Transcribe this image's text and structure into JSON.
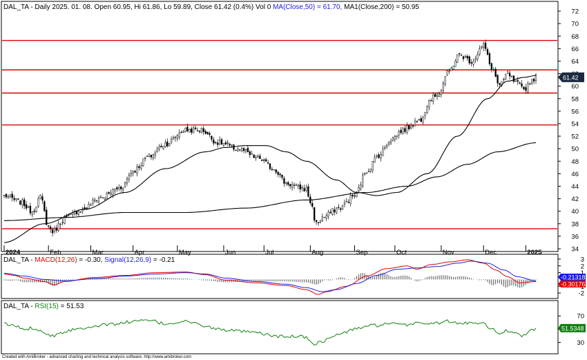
{
  "chart_data": [
    {
      "type": "candlestick",
      "header": {
        "ticker": "DAL_TA",
        "info": " - Daily 2025. 01. 08. Open 60.95, Hi 61.86, Lo 59.89, Close 61.42 (0.4%) Vol 0 ",
        "ma50_label": "MA(Close,50) = 61.70,",
        "ma200_label": " MA1(Close,200) = 50.95"
      },
      "ylim": [
        34,
        73
      ],
      "yticks": [
        34,
        36,
        38,
        40,
        42,
        44,
        46,
        48,
        50,
        52,
        54,
        56,
        58,
        60,
        62,
        64,
        66,
        68,
        70,
        72
      ],
      "x_months": [
        {
          "label": "2024",
          "bold": true,
          "index": 0
        },
        {
          "label": "Feb",
          "bold": false,
          "index": 22
        },
        {
          "label": "Mar",
          "bold": false,
          "index": 43
        },
        {
          "label": "Apr",
          "bold": false,
          "index": 64
        },
        {
          "label": "May",
          "bold": false,
          "index": 86
        },
        {
          "label": "Jun",
          "bold": false,
          "index": 109
        },
        {
          "label": "Jul",
          "bold": false,
          "index": 129
        },
        {
          "label": "Aug",
          "bold": false,
          "index": 152
        },
        {
          "label": "Sep",
          "bold": false,
          "index": 174
        },
        {
          "label": "Oct",
          "bold": false,
          "index": 194
        },
        {
          "label": "Nov",
          "bold": false,
          "index": 217
        },
        {
          "label": "Dec",
          "bold": false,
          "index": 238
        },
        {
          "label": "2025",
          "bold": true,
          "index": 259
        }
      ],
      "n_days": 265,
      "close_anchors": [
        [
          0,
          42.5
        ],
        [
          8,
          41.5
        ],
        [
          14,
          40.0
        ],
        [
          18,
          42.2
        ],
        [
          22,
          37.5
        ],
        [
          24,
          36.8
        ],
        [
          30,
          38.8
        ],
        [
          38,
          40.2
        ],
        [
          48,
          42.2
        ],
        [
          58,
          43.8
        ],
        [
          64,
          46.5
        ],
        [
          72,
          48.8
        ],
        [
          80,
          50.8
        ],
        [
          90,
          53.0
        ],
        [
          98,
          53.0
        ],
        [
          106,
          51.0
        ],
        [
          116,
          50.0
        ],
        [
          126,
          48.5
        ],
        [
          134,
          46.8
        ],
        [
          140,
          44.5
        ],
        [
          146,
          43.8
        ],
        [
          150,
          43.5
        ],
        [
          152,
          41.5
        ],
        [
          155,
          38.0
        ],
        [
          158,
          39.0
        ],
        [
          166,
          40.5
        ],
        [
          174,
          42.5
        ],
        [
          180,
          46.5
        ],
        [
          186,
          49.0
        ],
        [
          192,
          51.5
        ],
        [
          198,
          53.0
        ],
        [
          206,
          54.5
        ],
        [
          212,
          58.0
        ],
        [
          216,
          59.0
        ],
        [
          220,
          62.0
        ],
        [
          226,
          65.0
        ],
        [
          232,
          64.0
        ],
        [
          238,
          66.5
        ],
        [
          242,
          63.0
        ],
        [
          246,
          60.0
        ],
        [
          250,
          62.0
        ],
        [
          254,
          60.5
        ],
        [
          258,
          59.5
        ],
        [
          262,
          61.0
        ],
        [
          264,
          61.42
        ]
      ],
      "ma50_anchors": [
        [
          0,
          35.0
        ],
        [
          20,
          38.0
        ],
        [
          40,
          40.3
        ],
        [
          60,
          43.0
        ],
        [
          80,
          46.8
        ],
        [
          100,
          49.5
        ],
        [
          110,
          50.2
        ],
        [
          120,
          50.5
        ],
        [
          130,
          50.5
        ],
        [
          140,
          49.5
        ],
        [
          150,
          48.0
        ],
        [
          165,
          45.0
        ],
        [
          175,
          43.0
        ],
        [
          185,
          42.5
        ],
        [
          195,
          43.0
        ],
        [
          210,
          46.0
        ],
        [
          225,
          52.0
        ],
        [
          240,
          58.0
        ],
        [
          250,
          60.8
        ],
        [
          258,
          61.4
        ],
        [
          264,
          61.7
        ]
      ],
      "ma200_anchors": [
        [
          0,
          38.5
        ],
        [
          30,
          39.0
        ],
        [
          60,
          39.8
        ],
        [
          90,
          39.8
        ],
        [
          120,
          40.5
        ],
        [
          150,
          41.8
        ],
        [
          180,
          43.0
        ],
        [
          200,
          44.0
        ],
        [
          215,
          45.5
        ],
        [
          230,
          47.5
        ],
        [
          245,
          49.5
        ],
        [
          264,
          50.95
        ]
      ],
      "hlines": [
        67.3,
        62.6,
        58.9,
        53.8,
        37.2
      ],
      "last_price_label": "61.42",
      "colors": {
        "hline": "#e00000",
        "candle": "#000000",
        "candle_up_fill": "#ffffff",
        "ma": "#000000",
        "tag_bg": "#1a2a40"
      }
    },
    {
      "type": "line",
      "header": {
        "ticker": "DAL_TA",
        "sep": " - ",
        "macd_label": "MACD(12,26)",
        "macd_val": " = -0.30, ",
        "signal_label": "Signal(12,26,9)",
        "signal_val": " = -0.21"
      },
      "ylim": [
        -2.6,
        3.3
      ],
      "yticks": [
        3,
        2,
        1,
        -1,
        -2
      ],
      "macd_anchors": [
        [
          0,
          0.8
        ],
        [
          5,
          0.6
        ],
        [
          10,
          0.2
        ],
        [
          20,
          -0.3
        ],
        [
          25,
          -0.8
        ],
        [
          30,
          -0.3
        ],
        [
          45,
          0.3
        ],
        [
          60,
          0.6
        ],
        [
          75,
          1.0
        ],
        [
          90,
          1.1
        ],
        [
          100,
          0.7
        ],
        [
          110,
          -0.1
        ],
        [
          125,
          -0.5
        ],
        [
          140,
          -0.9
        ],
        [
          150,
          -1.5
        ],
        [
          156,
          -2.2
        ],
        [
          160,
          -1.8
        ],
        [
          170,
          -1.0
        ],
        [
          180,
          0.5
        ],
        [
          190,
          1.6
        ],
        [
          200,
          2.0
        ],
        [
          205,
          1.5
        ],
        [
          212,
          2.2
        ],
        [
          222,
          2.6
        ],
        [
          230,
          2.9
        ],
        [
          238,
          2.4
        ],
        [
          244,
          1.4
        ],
        [
          250,
          0.4
        ],
        [
          256,
          -0.5
        ],
        [
          264,
          -0.3
        ]
      ],
      "signal_anchors": [
        [
          0,
          0.9
        ],
        [
          10,
          0.5
        ],
        [
          20,
          0.0
        ],
        [
          30,
          -0.2
        ],
        [
          45,
          0.1
        ],
        [
          60,
          0.5
        ],
        [
          75,
          0.8
        ],
        [
          90,
          1.0
        ],
        [
          100,
          0.8
        ],
        [
          110,
          0.2
        ],
        [
          125,
          -0.3
        ],
        [
          140,
          -0.7
        ],
        [
          150,
          -1.2
        ],
        [
          158,
          -1.8
        ],
        [
          165,
          -1.5
        ],
        [
          175,
          -0.6
        ],
        [
          185,
          0.6
        ],
        [
          195,
          1.5
        ],
        [
          205,
          1.7
        ],
        [
          215,
          1.9
        ],
        [
          225,
          2.4
        ],
        [
          232,
          2.7
        ],
        [
          240,
          2.4
        ],
        [
          248,
          1.4
        ],
        [
          255,
          0.4
        ],
        [
          264,
          -0.21
        ]
      ],
      "tag_signal": "-0.21318",
      "tag_macd": "-0.30176",
      "colors": {
        "macd": "#e00000",
        "signal": "#1a1ae6",
        "hist": "#606060",
        "tag_signal_bg": "#1a1ae6",
        "tag_macd_bg": "#e00000"
      }
    },
    {
      "type": "line",
      "header": {
        "ticker": "DAL_TA",
        "sep": " - ",
        "rsi_label": "RSI(15)",
        "rsi_val": " = 51.53"
      },
      "ylim": [
        15,
        90
      ],
      "yticks": [
        70,
        50,
        30
      ],
      "rsi_anchors": [
        [
          0,
          58
        ],
        [
          5,
          55
        ],
        [
          10,
          50
        ],
        [
          15,
          52
        ],
        [
          20,
          45
        ],
        [
          24,
          40
        ],
        [
          28,
          45
        ],
        [
          35,
          50
        ],
        [
          45,
          55
        ],
        [
          55,
          58
        ],
        [
          65,
          62
        ],
        [
          72,
          63
        ],
        [
          80,
          58
        ],
        [
          90,
          62
        ],
        [
          98,
          56
        ],
        [
          106,
          50
        ],
        [
          116,
          47
        ],
        [
          126,
          44
        ],
        [
          134,
          40
        ],
        [
          140,
          38
        ],
        [
          146,
          40
        ],
        [
          150,
          37
        ],
        [
          154,
          28
        ],
        [
          158,
          32
        ],
        [
          166,
          42
        ],
        [
          174,
          50
        ],
        [
          180,
          55
        ],
        [
          186,
          56
        ],
        [
          192,
          58
        ],
        [
          198,
          56
        ],
        [
          206,
          60
        ],
        [
          212,
          58
        ],
        [
          220,
          62
        ],
        [
          226,
          58
        ],
        [
          232,
          60
        ],
        [
          238,
          60
        ],
        [
          242,
          50
        ],
        [
          246,
          44
        ],
        [
          250,
          48
        ],
        [
          254,
          45
        ],
        [
          258,
          40
        ],
        [
          262,
          48
        ],
        [
          264,
          51.53
        ]
      ],
      "tag_rsi": "51.5348",
      "colors": {
        "rsi": "#108010",
        "tag_bg": "#108010"
      }
    }
  ],
  "footer": "Created with AmiBroker - advanced charting and technical analysis software. http://www.amibroker.com"
}
